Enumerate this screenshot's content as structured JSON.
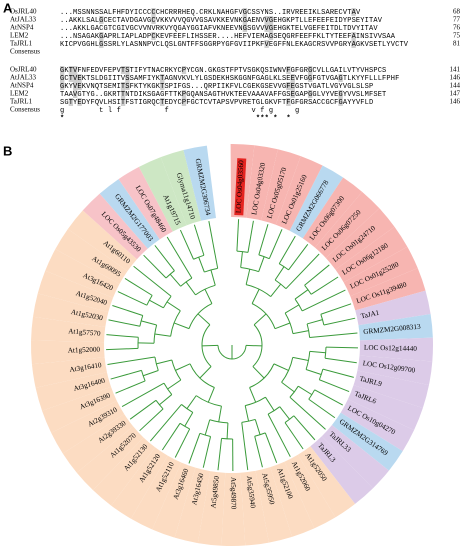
{
  "panel_a": {
    "label": "A",
    "blocks": [
      {
        "rows": [
          {
            "name": "OsJRL40",
            "sequence": "...MSSNNSSALFHFDYICCCCCHCRRRHEQ.CRKLNAHGFVGCSSYNS..IRVREEIKLSARECVTAV",
            "end": "68"
          },
          {
            "name": "AtJAL33",
            "sequence": "..AKKLSALGCECTAVDGAVGCVKKVVVQGVVGSAVKKEVNKGAENVVGEHGKPTLLEFEEFEIDYPSEYITAV",
            "end": "77"
          },
          {
            "name": "AtNSP4",
            "sequence": "...AKKLGACGTCGIVGCVVNVRKVYQGAYGGIAFVKNEEVNGSGVVVGEHGKTELVGEFEITDLTDVYITAV",
            "end": "76"
          },
          {
            "name": "LEM2",
            "sequence": "...NSAGAKGAPRLIAPLADPCKEVFEEFLIHSSER....HEFVIEMAGSEQGRFEEFFKLTYTEEFAINSIVVSAA",
            "end": "75"
          },
          {
            "name": "TaJRL1",
            "sequence": "KICPVGGHLGSSRLYLASNNPVCLQSLGNTFFSGGRPYGFGVIIPKFVEGFFNLEKAGCRSVVPGRYAGKVSETLYVCTV",
            "end": "81"
          }
        ],
        "consensus": {
          "name": "Consensus"
        }
      },
      {
        "rows": [
          {
            "name": "OsJRL40",
            "sequence": "GKTVFNFEDVFEPVTSTIFYTNACRKYCPYCGN.GKGSTFPTVSGKQSIWNVFGFGRGCVLLGAILVTYVHSPCS",
            "end": "141"
          },
          {
            "name": "AtJAL33",
            "sequence": "GCTVEKTSLDGIITVSSAMFIYKTAGNVKVLYLGSDEKHSKGGNFGAGLKLSEEVFGGFGTVGAGTLKYYFLLLFPHF",
            "end": "146"
          },
          {
            "name": "AtNSP4",
            "sequence": "GKYVEKVNQTSEMITSFKTYKGKTSPIFGS...QRPIIKFVLCGEKGSEVVGFEGSTVGATLVGYVGLSLSP",
            "end": "144"
          },
          {
            "name": "LEM2",
            "sequence": "TAAVGTYG..GKRTTNTDIKSGAGFTTKPGQANSAGTHVKTEEVAAAVAFFGSEGAPGGLVYVEGYVVSLMFSET",
            "end": "147"
          },
          {
            "name": "TaJRL1",
            "sequence": "SGTYEDYFQVLHSITFSTIGRQCTEDYCPFGCTCVTAPSVPVRETGLGKVFTFGFGRSACCGCFGAYYVFLD",
            "end": "146"
          }
        ],
        "consensus": {
          "name": "Consensus",
          "sequence": "g        t l f          f                   v f g     g"
        },
        "markers": "*                                            *** *  *"
      }
    ]
  },
  "panel_b": {
    "label": "B",
    "leaves": [
      {
        "label": "LOC Os04g03560",
        "color": "#f7b5b1",
        "label_background": "#e52420"
      },
      {
        "label": "LOC Os04g03320",
        "color": "#f7b5b1"
      },
      {
        "label": "LOC Os05g05170",
        "color": "#f7b5b1"
      },
      {
        "label": "LOC Os01g25160",
        "color": "#f7b5b1"
      },
      {
        "label": "GRMZM2G066778",
        "color": "#b9d9f0"
      },
      {
        "label": "LOC Os06g07300",
        "color": "#f7b5b1"
      },
      {
        "label": "LOC Os06g07250",
        "color": "#f7b5b1"
      },
      {
        "label": "LOC Os01g24710",
        "color": "#f7b5b1"
      },
      {
        "label": "LOC Os06g12180",
        "color": "#f7b5b1"
      },
      {
        "label": "LOC Os01g25280",
        "color": "#f7b5b1"
      },
      {
        "label": "LOC Os11g39480",
        "color": "#f7b5b1"
      },
      {
        "label": "TaJA1",
        "color": "#dccbe8"
      },
      {
        "label": "GRMZM2G008313",
        "color": "#b9d9f0"
      },
      {
        "label": "LOC Os12g14440",
        "color": "#dccbe8"
      },
      {
        "label": "LOC Os12g09700",
        "color": "#dccbe8"
      },
      {
        "label": "TaJRL9",
        "color": "#dccbe8"
      },
      {
        "label": "TaJRL6",
        "color": "#dccbe8"
      },
      {
        "label": "LOC Os10g04270",
        "color": "#dccbe8"
      },
      {
        "label": "GRMZM2G314769",
        "color": "#b9d9f0"
      },
      {
        "label": "TaJRL33",
        "color": "#dccbe8"
      },
      {
        "label": "TaJRL3",
        "color": "#dccbe8"
      },
      {
        "label": "At1g52050",
        "color": "#fcdcc2"
      },
      {
        "label": "At1g52060",
        "color": "#fcdcc2"
      },
      {
        "label": "At1g52100",
        "color": "#fcdcc2"
      },
      {
        "label": "At5g35950",
        "color": "#fcdcc2"
      },
      {
        "label": "At5g35940",
        "color": "#fcdcc2"
      },
      {
        "label": "At5g49870",
        "color": "#fcdcc2"
      },
      {
        "label": "At5g49850",
        "color": "#fcdcc2"
      },
      {
        "label": "At3g16450",
        "color": "#fcdcc2"
      },
      {
        "label": "At3g16460",
        "color": "#fcdcc2"
      },
      {
        "label": "At1g52110",
        "color": "#fcdcc2"
      },
      {
        "label": "At1g52120",
        "color": "#fcdcc2"
      },
      {
        "label": "At1g52130",
        "color": "#fcdcc2"
      },
      {
        "label": "At1g52070",
        "color": "#fcdcc2"
      },
      {
        "label": "At2g39330",
        "color": "#fcdcc2"
      },
      {
        "label": "At2g39310",
        "color": "#fcdcc2"
      },
      {
        "label": "At3g16390",
        "color": "#fcdcc2"
      },
      {
        "label": "At3g16400",
        "color": "#fcdcc2"
      },
      {
        "label": "At3g16410",
        "color": "#fcdcc2"
      },
      {
        "label": "At1g52000",
        "color": "#fcdcc2"
      },
      {
        "label": "At1g57570",
        "color": "#fcdcc2"
      },
      {
        "label": "At1g52030",
        "color": "#fcdcc2"
      },
      {
        "label": "At1g52040",
        "color": "#fcdcc2"
      },
      {
        "label": "At3g16420",
        "color": "#fcdcc2"
      },
      {
        "label": "At1g60095",
        "color": "#fcdcc2"
      },
      {
        "label": "At1g60110",
        "color": "#fcdcc2"
      },
      {
        "label": "LOC Os05g43530",
        "color": "#f7c3c8"
      },
      {
        "label": "GRMZM2G177003",
        "color": "#b9d9f0"
      },
      {
        "label": "LOC Os07g48460",
        "color": "#f7c3c8"
      },
      {
        "label": "At1g19715",
        "color": "#cde7c4"
      },
      {
        "label": "Glyma11g14710",
        "color": "#cde7c4"
      },
      {
        "label": "GRMZM2G306734",
        "color": "#b9d9f0"
      }
    ]
  }
}
